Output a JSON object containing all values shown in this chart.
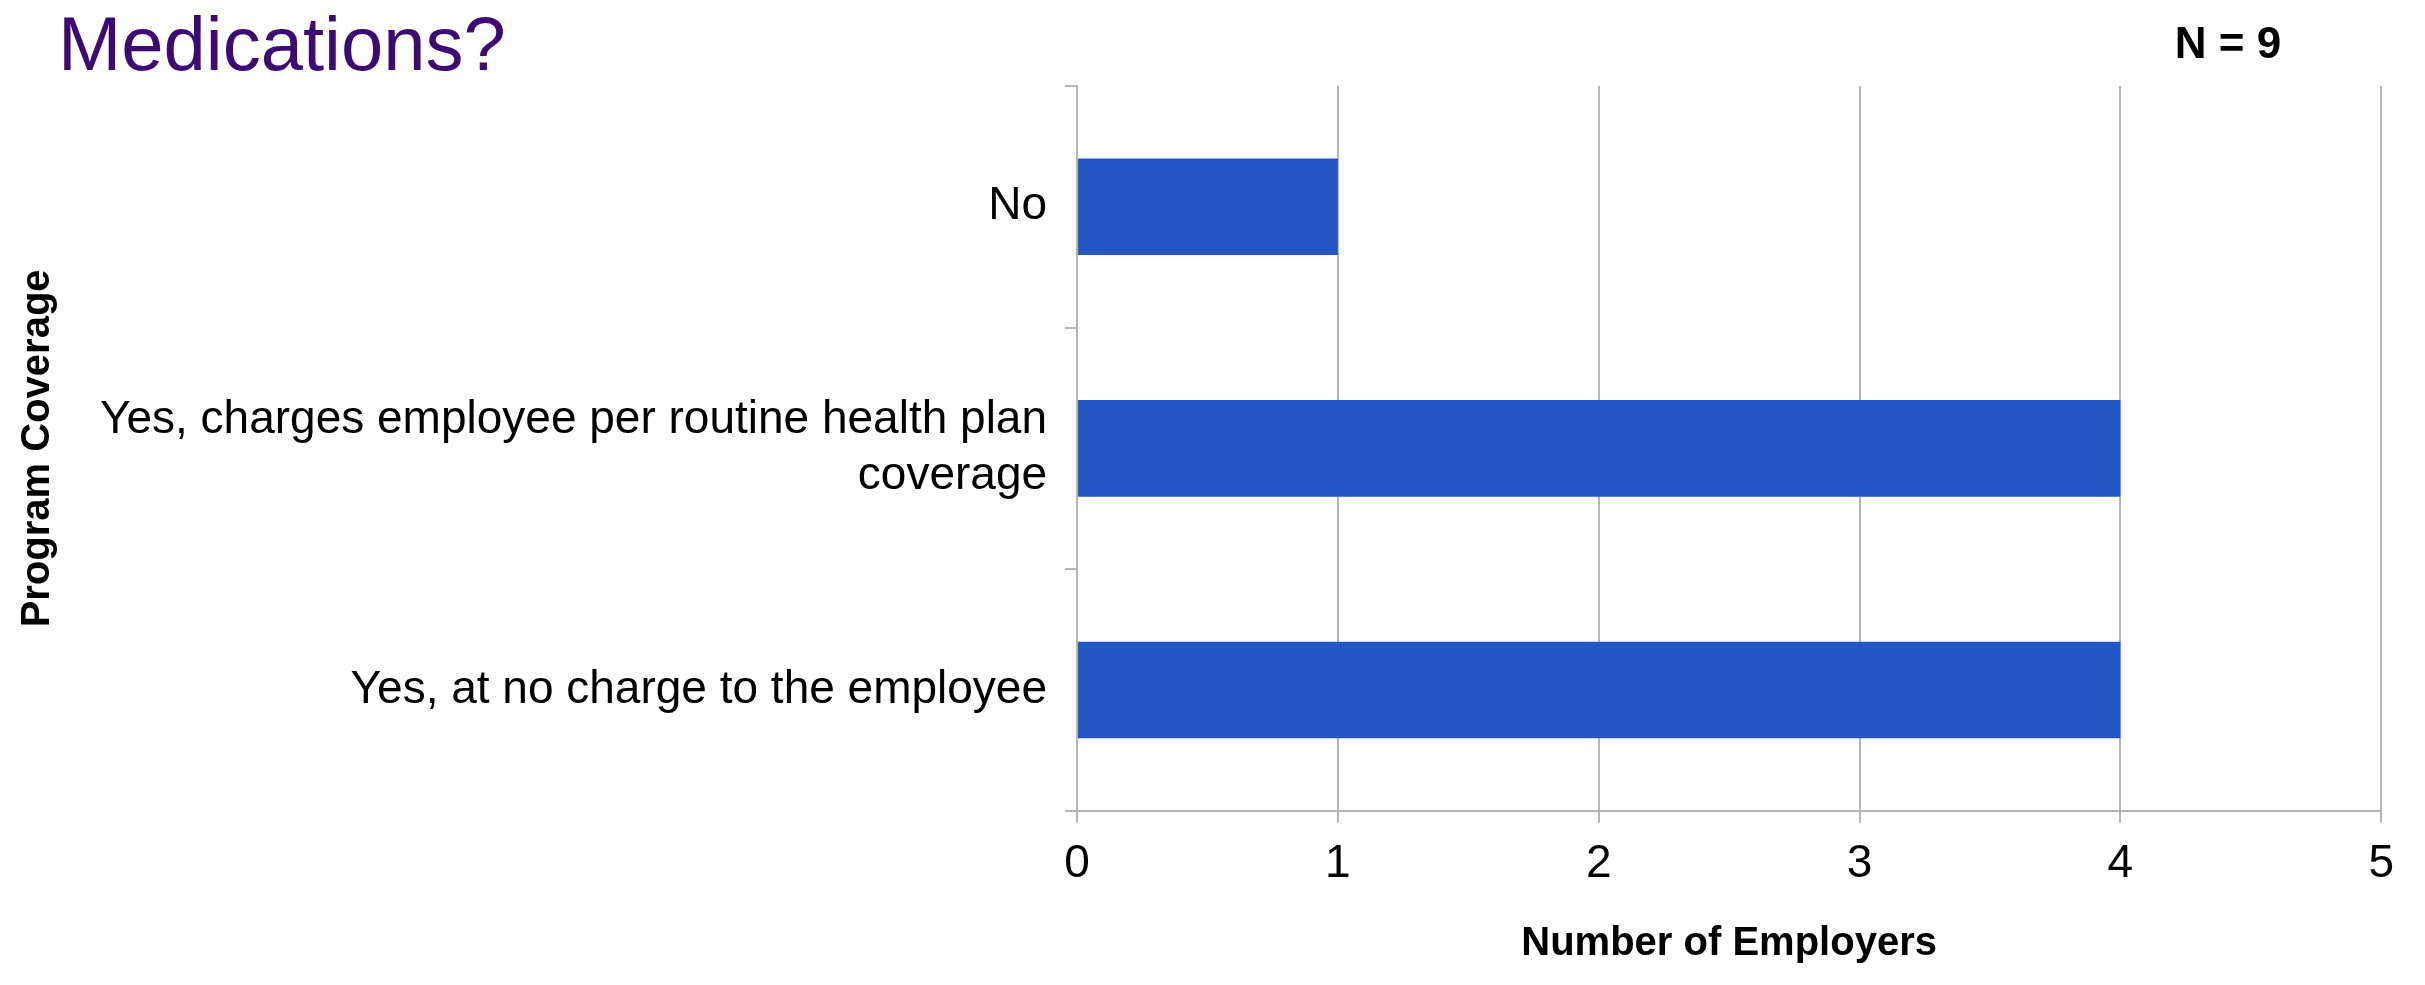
{
  "chart_data": {
    "type": "bar",
    "orientation": "horizontal",
    "title": "Medications?",
    "categories": [
      "No",
      "Yes, charges employee per routine health plan coverage",
      "Yes, at no charge to the employee"
    ],
    "values": [
      1,
      4,
      4
    ],
    "color": "#2456c4",
    "xlabel": "Number of Employers",
    "ylabel": "Program Coverage",
    "xlim": [
      0,
      5
    ],
    "xticks": [
      0,
      1,
      2,
      3,
      4,
      5
    ],
    "grid": "x",
    "annotations": [
      "N = 9"
    ]
  }
}
